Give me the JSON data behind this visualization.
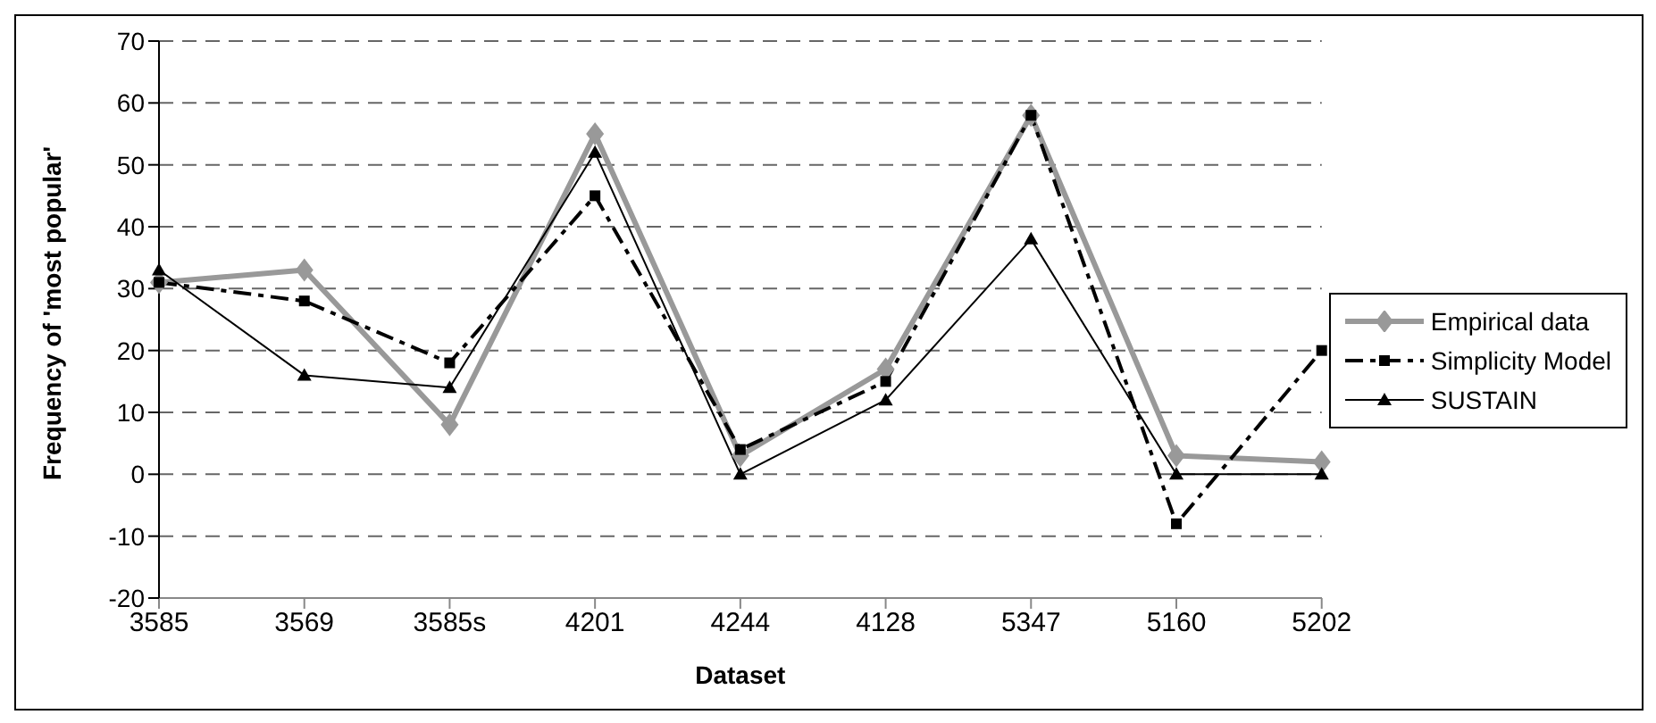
{
  "chart_data": {
    "type": "line",
    "xlabel": "Dataset",
    "ylabel": "Frequency of 'most popular'",
    "categories": [
      "3585",
      "3569",
      "3585s",
      "4201",
      "4244",
      "4128",
      "5347",
      "5160",
      "5202"
    ],
    "series": [
      {
        "name": "Empirical data",
        "color": "#999999",
        "marker": "diamond",
        "line_style": "solid",
        "values": [
          31,
          33,
          8,
          55,
          3,
          17,
          58,
          3,
          2
        ]
      },
      {
        "name": "Simplicity Model",
        "color": "#000000",
        "marker": "square",
        "line_style": "dashed",
        "values": [
          31,
          28,
          18,
          45,
          4,
          15,
          58,
          -8,
          20
        ]
      },
      {
        "name": "SUSTAIN",
        "color": "#000000",
        "marker": "triangle",
        "line_style": "solid",
        "values": [
          33,
          16,
          14,
          52,
          0,
          12,
          38,
          0,
          0
        ]
      }
    ],
    "ylim": [
      -20,
      70
    ],
    "yticks": [
      -20,
      -10,
      0,
      10,
      20,
      30,
      40,
      50,
      60,
      70
    ],
    "grid": "y",
    "legend": "right"
  }
}
